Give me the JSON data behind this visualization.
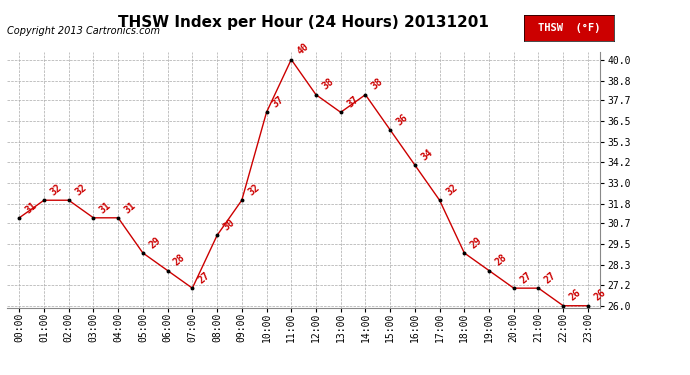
{
  "title": "THSW Index per Hour (24 Hours) 20131201",
  "copyright": "Copyright 2013 Cartronics.com",
  "legend_label": "THSW  (°F)",
  "hours": [
    "00:00",
    "01:00",
    "02:00",
    "03:00",
    "04:00",
    "05:00",
    "06:00",
    "07:00",
    "08:00",
    "09:00",
    "10:00",
    "11:00",
    "12:00",
    "13:00",
    "14:00",
    "15:00",
    "16:00",
    "17:00",
    "18:00",
    "19:00",
    "20:00",
    "21:00",
    "22:00",
    "23:00"
  ],
  "values": [
    31,
    32,
    32,
    31,
    31,
    29,
    28,
    27,
    30,
    32,
    37,
    40,
    38,
    37,
    38,
    36,
    34,
    32,
    29,
    28,
    27,
    27,
    26,
    26
  ],
  "line_color": "#cc0000",
  "marker_color": "#000000",
  "label_color": "#cc0000",
  "grid_color": "#aaaaaa",
  "bg_color": "#ffffff",
  "ylim_min": 25.9,
  "ylim_max": 40.4,
  "yticks": [
    26.0,
    27.2,
    28.3,
    29.5,
    30.7,
    31.8,
    33.0,
    34.2,
    35.3,
    36.5,
    37.7,
    38.8,
    40.0
  ],
  "title_fontsize": 11,
  "copyright_fontsize": 7,
  "label_fontsize": 7,
  "tick_fontsize": 7,
  "legend_bg": "#cc0000",
  "legend_text_color": "#ffffff"
}
